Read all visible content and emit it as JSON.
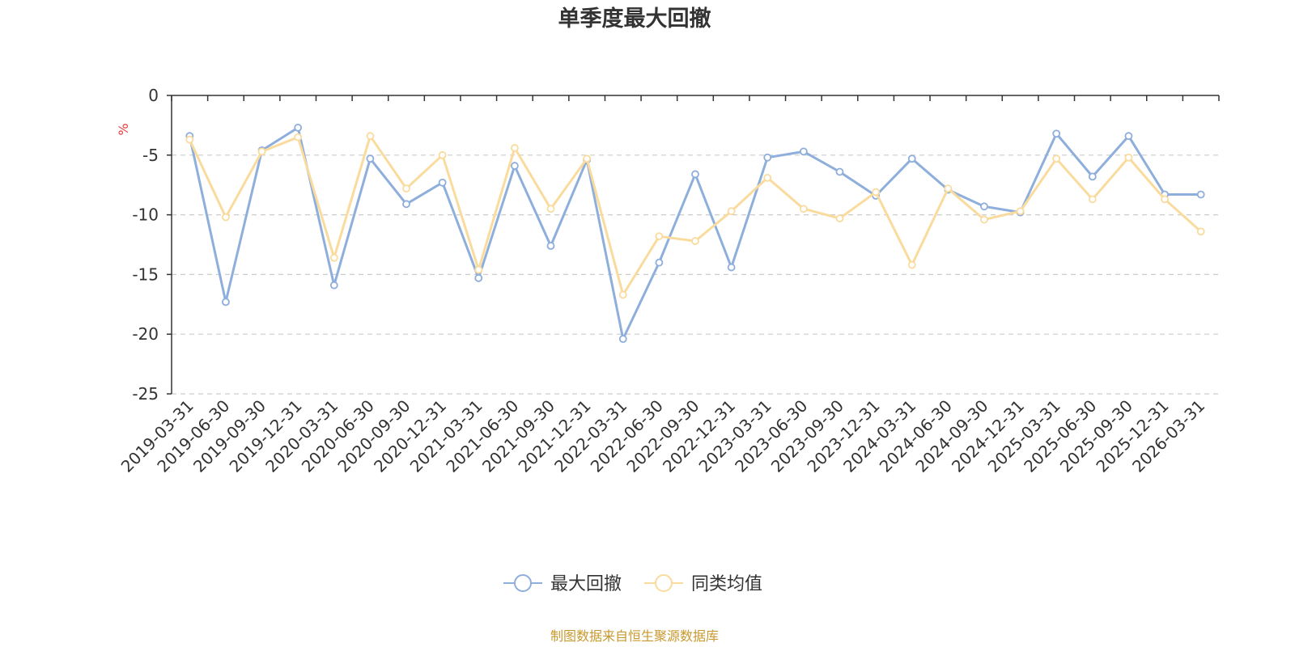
{
  "chart_data": {
    "type": "line",
    "title": "单季度最大回撤",
    "y_unit": "%",
    "ylim": [
      -25,
      0
    ],
    "y_ticks": [
      0,
      -5,
      -10,
      -15,
      -20,
      -25
    ],
    "grid": "horizontal-dashed",
    "legend_position": "bottom-center",
    "categories": [
      "2019-03-31",
      "2019-06-30",
      "2019-09-30",
      "2019-12-31",
      "2020-03-31",
      "2020-06-30",
      "2020-09-30",
      "2020-12-31",
      "2021-03-31",
      "2021-06-30",
      "2021-09-30",
      "2021-12-31",
      "2022-03-31",
      "2022-06-30",
      "2022-09-30",
      "2022-12-31",
      "2023-03-31",
      "2023-06-30",
      "2023-09-30",
      "2023-12-31",
      "2024-03-31",
      "2024-06-30",
      "2024-09-30",
      "2024-12-31",
      "2025-03-31",
      "2025-06-30",
      "2025-09-30",
      "2025-12-31",
      "2026-03-31"
    ],
    "series": [
      {
        "name": "最大回撤",
        "color": "#8eaedc",
        "values": [
          -3.4,
          -17.3,
          -4.6,
          -2.7,
          -15.9,
          -5.3,
          -9.1,
          -7.3,
          -15.3,
          -5.9,
          -12.6,
          -5.4,
          -20.4,
          -14.0,
          -6.6,
          -14.4,
          -5.2,
          -4.7,
          -6.4,
          -8.4,
          -5.3,
          -7.9,
          -9.3,
          -9.8,
          -3.2,
          -6.8,
          -3.4,
          -8.3,
          -8.3
        ]
      },
      {
        "name": "同类均值",
        "color": "#fadb9e",
        "values": [
          -3.7,
          -10.2,
          -4.7,
          -3.5,
          -13.6,
          -3.4,
          -7.8,
          -5.0,
          -14.6,
          -4.4,
          -9.5,
          -5.3,
          -16.7,
          -11.8,
          -12.2,
          -9.7,
          -6.9,
          -9.5,
          -10.3,
          -8.1,
          -14.2,
          -7.8,
          -10.4,
          -9.7,
          -5.3,
          -8.7,
          -5.2,
          -8.7,
          -11.4
        ]
      }
    ],
    "source_text": "制图数据来自恒生聚源数据库",
    "source_color": "#c8992e",
    "unit_color": "#e63b3b",
    "axis_color": "#333333",
    "grid_color": "#cccccc"
  }
}
